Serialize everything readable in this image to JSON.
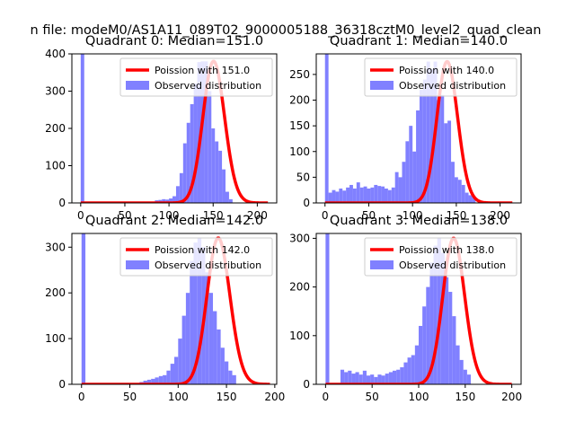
{
  "figure": {
    "suptitle": "n file: modeM0/AS1A11_089T02_9000005188_36318cztM0_level2_quad_clean"
  },
  "colors": {
    "fit_line": "#ff0000",
    "bars": "#8080ff",
    "axes": "#000000",
    "background": "#ffffff"
  },
  "chart_data": [
    {
      "type": "bar",
      "title": "Quadrant 0: Median=151.0",
      "median": 151.0,
      "xlim": [
        -10,
        222
      ],
      "ylim": [
        0,
        400
      ],
      "xticks": [
        0,
        50,
        100,
        150,
        200
      ],
      "yticks": [
        0,
        100,
        200,
        300,
        400
      ],
      "bin_width": 4,
      "x_start": 0,
      "observed": [
        400,
        0,
        0,
        0,
        0,
        0,
        0,
        0,
        0,
        0,
        0,
        0,
        0,
        0,
        0,
        0,
        0,
        0,
        0,
        0,
        0,
        7,
        8,
        10,
        9,
        12,
        18,
        45,
        80,
        160,
        215,
        265,
        320,
        378,
        380,
        380,
        300,
        200,
        165,
        140,
        90,
        30,
        10,
        0,
        0,
        0,
        0,
        0,
        0,
        0,
        0,
        0,
        0,
        0,
        0
      ],
      "fit_x_range": [
        0,
        212
      ],
      "legend": [
        "Poission with 151.0",
        "Observed distribution"
      ]
    },
    {
      "type": "bar",
      "title": "Quadrant 1: Median=140.0",
      "median": 140.0,
      "xlim": [
        -10,
        224
      ],
      "ylim": [
        0,
        290
      ],
      "xticks": [
        0,
        50,
        100,
        150,
        200
      ],
      "yticks": [
        0,
        50,
        100,
        150,
        200,
        250
      ],
      "bin_width": 4,
      "x_start": 0,
      "observed": [
        290,
        20,
        25,
        22,
        28,
        24,
        30,
        35,
        28,
        40,
        30,
        32,
        28,
        30,
        35,
        33,
        32,
        28,
        25,
        30,
        60,
        50,
        80,
        120,
        150,
        100,
        180,
        220,
        240,
        275,
        260,
        275,
        200,
        210,
        155,
        160,
        80,
        50,
        45,
        35,
        20,
        15,
        12,
        0,
        0,
        0,
        0,
        0,
        0,
        0,
        0,
        0,
        0,
        0
      ],
      "fit_x_range": [
        0,
        214
      ],
      "legend": [
        "Poission with 140.0",
        "Observed distribution"
      ]
    },
    {
      "type": "bar",
      "title": "Quadrant 2: Median=142.0",
      "median": 142.0,
      "xlim": [
        -10,
        202
      ],
      "ylim": [
        0,
        330
      ],
      "xticks": [
        0,
        50,
        100,
        150,
        200
      ],
      "yticks": [
        0,
        100,
        200,
        300
      ],
      "bin_width": 4,
      "x_start": 0,
      "observed": [
        330,
        0,
        0,
        0,
        0,
        0,
        0,
        0,
        0,
        0,
        0,
        0,
        0,
        0,
        0,
        5,
        8,
        10,
        12,
        15,
        18,
        20,
        30,
        45,
        60,
        100,
        150,
        200,
        270,
        310,
        320,
        300,
        245,
        200,
        160,
        120,
        80,
        50,
        30,
        20,
        0,
        0,
        0,
        0,
        0,
        0,
        0,
        0
      ],
      "fit_x_range": [
        0,
        195
      ],
      "legend": [
        "Poission with 142.0",
        "Observed distribution"
      ]
    },
    {
      "type": "bar",
      "title": "Quadrant 3: Median=138.0",
      "median": 138.0,
      "xlim": [
        -10,
        210
      ],
      "ylim": [
        0,
        310
      ],
      "xticks": [
        0,
        50,
        100,
        150,
        200
      ],
      "yticks": [
        0,
        100,
        200,
        300
      ],
      "bin_width": 4,
      "x_start": 0,
      "observed": [
        310,
        0,
        0,
        0,
        30,
        25,
        28,
        22,
        25,
        20,
        28,
        18,
        20,
        15,
        20,
        18,
        22,
        25,
        28,
        30,
        35,
        45,
        55,
        60,
        80,
        120,
        160,
        200,
        250,
        285,
        300,
        270,
        220,
        190,
        140,
        80,
        50,
        30,
        20,
        0,
        0,
        0,
        0,
        0,
        0,
        0,
        0,
        0,
        0,
        0
      ],
      "fit_x_range": [
        0,
        200
      ],
      "legend": [
        "Poission with 138.0",
        "Observed distribution"
      ]
    }
  ]
}
